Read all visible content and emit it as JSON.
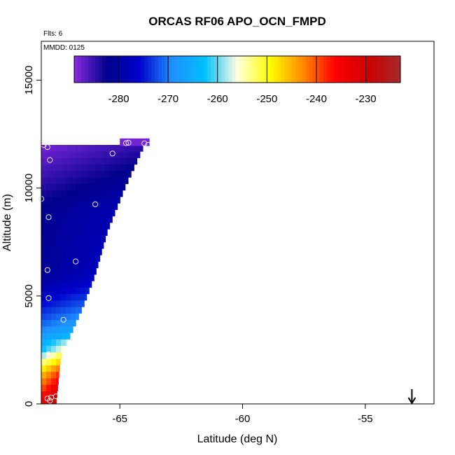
{
  "chart_data": {
    "type": "heatmap",
    "title": "ORCAS RF06 APO_OCN_FMPD",
    "xlabel": "Latitude (deg N)",
    "ylabel": "Altitude (m)",
    "flights_label": "Flts: 6",
    "date_label": "MMDD: 0125",
    "xlim": [
      -68.2,
      -52.2
    ],
    "ylim": [
      0,
      16800
    ],
    "x_ticks": [
      -65,
      -60,
      -55
    ],
    "x_tick_labels": [
      "-65",
      "-60",
      "-55"
    ],
    "y_ticks": [
      0,
      5000,
      10000,
      15000
    ],
    "y_tick_labels": [
      "0",
      "5000",
      "10000",
      "15000"
    ],
    "grid": false,
    "colorbar": {
      "position": "top",
      "range": [
        -289,
        -223
      ],
      "ticks": [
        -280,
        -270,
        -260,
        -250,
        -240,
        -230
      ],
      "tick_labels": [
        "-280",
        "-270",
        "-260",
        "-250",
        "-240",
        "-230"
      ],
      "colors": [
        "#8a2be2",
        "#00008b",
        "#0000cd",
        "#1e90ff",
        "#00bfff",
        "#ffffe0",
        "#ffff00",
        "#ff8c00",
        "#ff0000",
        "#cd0000",
        "#a52a2a"
      ]
    },
    "field": {
      "lat_start": -68.2,
      "lat_step": 0.2,
      "alt_step": 300,
      "edge": [
        {
          "alt": 0,
          "lat": -67.6
        },
        {
          "alt": 2200,
          "lat": -67.4
        },
        {
          "alt": 4500,
          "lat": -66.5
        },
        {
          "alt": 6000,
          "lat": -66.0
        },
        {
          "alt": 8000,
          "lat": -65.5
        },
        {
          "alt": 10000,
          "lat": -64.8
        },
        {
          "alt": 11500,
          "lat": -64.2
        },
        {
          "alt": 12000,
          "lat": -64.0
        }
      ],
      "profile": [
        {
          "alt": 0,
          "value": -232
        },
        {
          "alt": 600,
          "value": -238
        },
        {
          "alt": 1500,
          "value": -246
        },
        {
          "alt": 2500,
          "value": -262
        },
        {
          "alt": 3500,
          "value": -270
        },
        {
          "alt": 4800,
          "value": -276
        },
        {
          "alt": 6000,
          "value": -281
        },
        {
          "alt": 9000,
          "value": -282
        },
        {
          "alt": 11000,
          "value": -286
        },
        {
          "alt": 12000,
          "value": -288
        }
      ],
      "lat_gradient": 3.5
    },
    "flight_points": [
      {
        "lat": -68.1,
        "alt": 12000
      },
      {
        "lat": -67.95,
        "alt": 11900
      },
      {
        "lat": -67.85,
        "alt": 11300
      },
      {
        "lat": -65.3,
        "alt": 11600
      },
      {
        "lat": -64.75,
        "alt": 12080
      },
      {
        "lat": -64.65,
        "alt": 12100
      },
      {
        "lat": -64.0,
        "alt": 12070
      },
      {
        "lat": -63.85,
        "alt": 12000
      },
      {
        "lat": -68.2,
        "alt": 9500
      },
      {
        "lat": -67.9,
        "alt": 8650
      },
      {
        "lat": -66.0,
        "alt": 9250
      },
      {
        "lat": -67.95,
        "alt": 6200
      },
      {
        "lat": -66.8,
        "alt": 6600
      },
      {
        "lat": -67.9,
        "alt": 4900
      },
      {
        "lat": -67.3,
        "alt": 3900
      },
      {
        "lat": -67.9,
        "alt": 2300
      },
      {
        "lat": -67.8,
        "alt": 300
      },
      {
        "lat": -67.6,
        "alt": 350
      },
      {
        "lat": -67.95,
        "alt": 250
      },
      {
        "lat": -67.85,
        "alt": 150
      }
    ],
    "arrow": {
      "lat": -53.1
    }
  }
}
